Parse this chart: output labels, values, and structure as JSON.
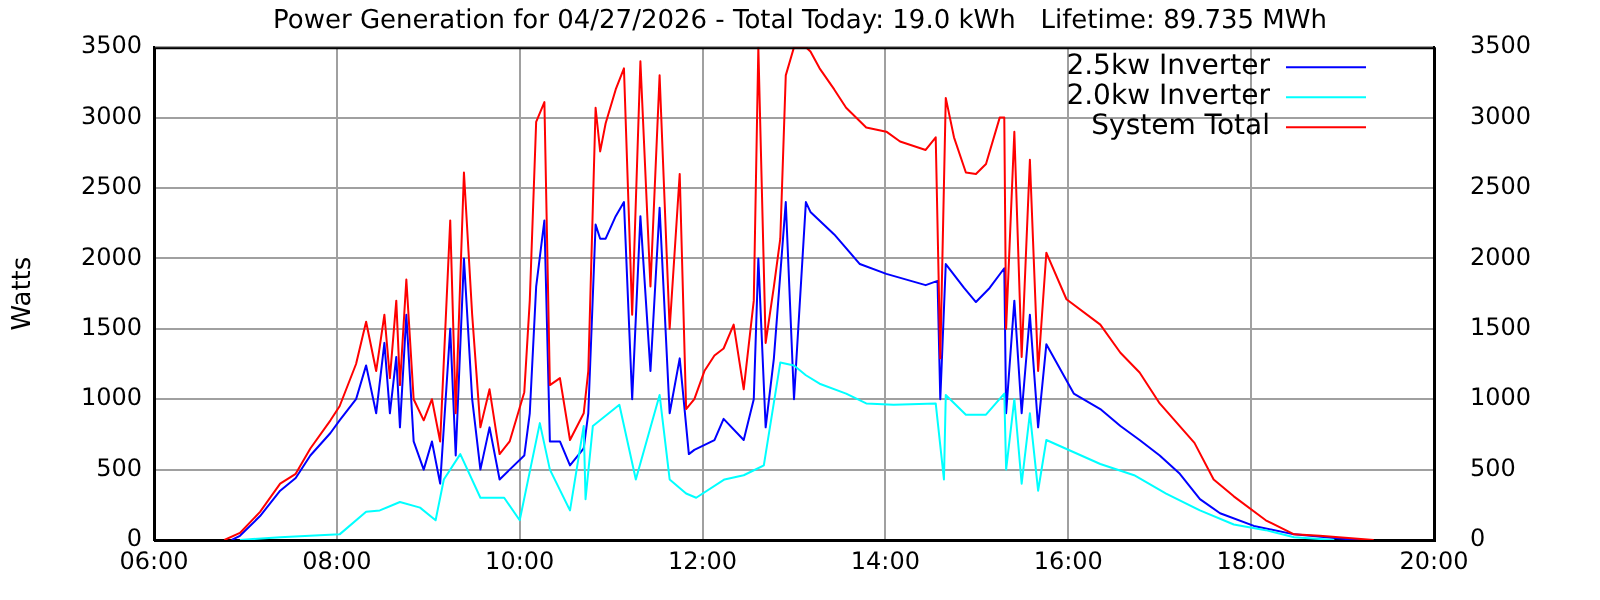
{
  "chart_data": {
    "type": "line",
    "title": "Power Generation for 04/27/2026 - Total Today: 19.0 kWh   Lifetime: 89.735 MWh",
    "ylabel": "Watts",
    "xlim": [
      6,
      20
    ],
    "xticks": [
      {
        "value": 6,
        "label": "06:00"
      },
      {
        "value": 8,
        "label": "08:00"
      },
      {
        "value": 10,
        "label": "10:00"
      },
      {
        "value": 12,
        "label": "12:00"
      },
      {
        "value": 14,
        "label": "14:00"
      },
      {
        "value": 16,
        "label": "16:00"
      },
      {
        "value": 18,
        "label": "18:00"
      },
      {
        "value": 20,
        "label": "20:00"
      }
    ],
    "ylim": [
      0,
      3500
    ],
    "yticks": [
      0,
      500,
      1000,
      1500,
      2000,
      2500,
      3000,
      3500
    ],
    "y2lim": [
      0,
      3500
    ],
    "y2ticks": [
      0,
      500,
      1000,
      1500,
      2000,
      2500,
      3000,
      3500
    ],
    "grid": true,
    "legend": "top right",
    "series": [
      {
        "name": "2.5kw Inverter",
        "color": "#0000ff",
        "x": [
          6.85,
          6.94,
          7.16,
          7.38,
          7.55,
          7.71,
          7.93,
          8.03,
          8.21,
          8.32,
          8.43,
          8.52,
          8.58,
          8.65,
          8.69,
          8.76,
          8.84,
          8.95,
          9.04,
          9.13,
          9.24,
          9.3,
          9.39,
          9.48,
          9.57,
          9.67,
          9.78,
          9.89,
          10.05,
          10.11,
          10.18,
          10.27,
          10.33,
          10.44,
          10.55,
          10.7,
          10.75,
          10.83,
          10.88,
          10.94,
          11.05,
          11.14,
          11.23,
          11.32,
          11.43,
          11.53,
          11.64,
          11.75,
          11.85,
          11.91,
          12.13,
          12.23,
          12.45,
          12.56,
          12.61,
          12.69,
          12.78,
          12.91,
          13.0,
          13.13,
          13.18,
          13.44,
          13.72,
          14.01,
          14.44,
          14.57,
          14.6,
          14.66,
          14.86,
          14.99,
          15.14,
          15.3,
          15.32,
          15.41,
          15.49,
          15.58,
          15.67,
          15.76,
          16.06,
          16.35,
          16.57,
          16.78,
          17.0,
          17.22,
          17.44,
          17.66,
          18.03,
          18.47,
          18.97,
          19.19
        ],
        "values": [
          0,
          30,
          170,
          350,
          440,
          600,
          760,
          850,
          1000,
          1240,
          900,
          1400,
          900,
          1300,
          800,
          1600,
          700,
          500,
          700,
          400,
          1500,
          600,
          2000,
          1000,
          500,
          800,
          430,
          500,
          600,
          900,
          1800,
          2270,
          700,
          700,
          530,
          650,
          900,
          2240,
          2140,
          2140,
          2300,
          2400,
          1000,
          2300,
          1200,
          2360,
          900,
          1290,
          610,
          640,
          710,
          860,
          710,
          1000,
          2000,
          800,
          1290,
          2400,
          1000,
          2400,
          2330,
          2170,
          1960,
          1890,
          1810,
          1840,
          1000,
          1960,
          1790,
          1690,
          1790,
          1930,
          900,
          1700,
          900,
          1600,
          800,
          1390,
          1040,
          930,
          810,
          710,
          600,
          470,
          290,
          190,
          100,
          40,
          10,
          0
        ]
      },
      {
        "name": "2.0kw Inverter",
        "color": "#00ffff",
        "x": [
          6.94,
          7.38,
          8.03,
          8.32,
          8.47,
          8.69,
          8.91,
          9.08,
          9.17,
          9.35,
          9.57,
          9.83,
          10.0,
          10.22,
          10.33,
          10.55,
          10.7,
          10.72,
          10.8,
          11.09,
          11.27,
          11.53,
          11.64,
          11.82,
          11.93,
          12.24,
          12.45,
          12.67,
          12.85,
          13.0,
          13.13,
          13.28,
          13.57,
          13.79,
          14.09,
          14.55,
          14.64,
          14.66,
          14.88,
          15.1,
          15.3,
          15.32,
          15.41,
          15.49,
          15.58,
          15.67,
          15.76,
          16.35,
          16.72,
          17.07,
          17.44,
          17.81,
          18.16,
          18.47,
          18.91
        ],
        "values": [
          0,
          20,
          40,
          200,
          210,
          270,
          230,
          140,
          430,
          610,
          300,
          300,
          140,
          830,
          500,
          210,
          810,
          290,
          810,
          960,
          430,
          1030,
          430,
          330,
          300,
          430,
          460,
          530,
          1260,
          1240,
          1170,
          1110,
          1040,
          970,
          960,
          970,
          430,
          1030,
          890,
          890,
          1040,
          500,
          1000,
          400,
          900,
          350,
          710,
          540,
          460,
          330,
          210,
          110,
          70,
          20,
          0
        ]
      },
      {
        "name": "System Total",
        "color": "#ff0000",
        "x": [
          6.77,
          6.94,
          7.16,
          7.38,
          7.55,
          7.71,
          7.93,
          8.03,
          8.21,
          8.32,
          8.43,
          8.52,
          8.58,
          8.65,
          8.69,
          8.76,
          8.84,
          8.95,
          9.04,
          9.13,
          9.24,
          9.3,
          9.39,
          9.48,
          9.57,
          9.67,
          9.78,
          9.89,
          10.05,
          10.11,
          10.18,
          10.27,
          10.33,
          10.44,
          10.55,
          10.7,
          10.75,
          10.83,
          10.88,
          10.94,
          11.05,
          11.14,
          11.23,
          11.32,
          11.43,
          11.53,
          11.64,
          11.75,
          11.82,
          11.91,
          12.02,
          12.13,
          12.23,
          12.34,
          12.45,
          12.56,
          12.61,
          12.69,
          12.78,
          12.85,
          12.91,
          13.0,
          13.13,
          13.18,
          13.28,
          13.44,
          13.57,
          13.79,
          14.01,
          14.16,
          14.44,
          14.55,
          14.6,
          14.66,
          14.75,
          14.88,
          14.99,
          15.1,
          15.25,
          15.3,
          15.32,
          15.41,
          15.49,
          15.58,
          15.67,
          15.76,
          15.98,
          16.35,
          16.57,
          16.78,
          17.0,
          17.38,
          17.59,
          17.81,
          18.16,
          18.47,
          18.75,
          19.34
        ],
        "values": [
          0,
          50,
          200,
          400,
          470,
          650,
          850,
          950,
          1250,
          1550,
          1200,
          1600,
          1150,
          1700,
          1100,
          1850,
          1000,
          850,
          1000,
          700,
          2270,
          900,
          2610,
          1600,
          800,
          1070,
          610,
          700,
          1050,
          1700,
          2970,
          3110,
          1100,
          1150,
          710,
          900,
          1200,
          3070,
          2760,
          2960,
          3200,
          3350,
          1600,
          3400,
          1800,
          3300,
          1500,
          2600,
          930,
          1000,
          1200,
          1310,
          1360,
          1530,
          1070,
          1700,
          3500,
          1400,
          1800,
          2140,
          3300,
          3500,
          3500,
          3470,
          3350,
          3200,
          3070,
          2930,
          2900,
          2830,
          2770,
          2860,
          1290,
          3140,
          2860,
          2610,
          2600,
          2670,
          3000,
          3000,
          1500,
          2900,
          1300,
          2700,
          1200,
          2040,
          1710,
          1530,
          1330,
          1190,
          970,
          690,
          430,
          310,
          140,
          40,
          30,
          0
        ]
      }
    ]
  }
}
